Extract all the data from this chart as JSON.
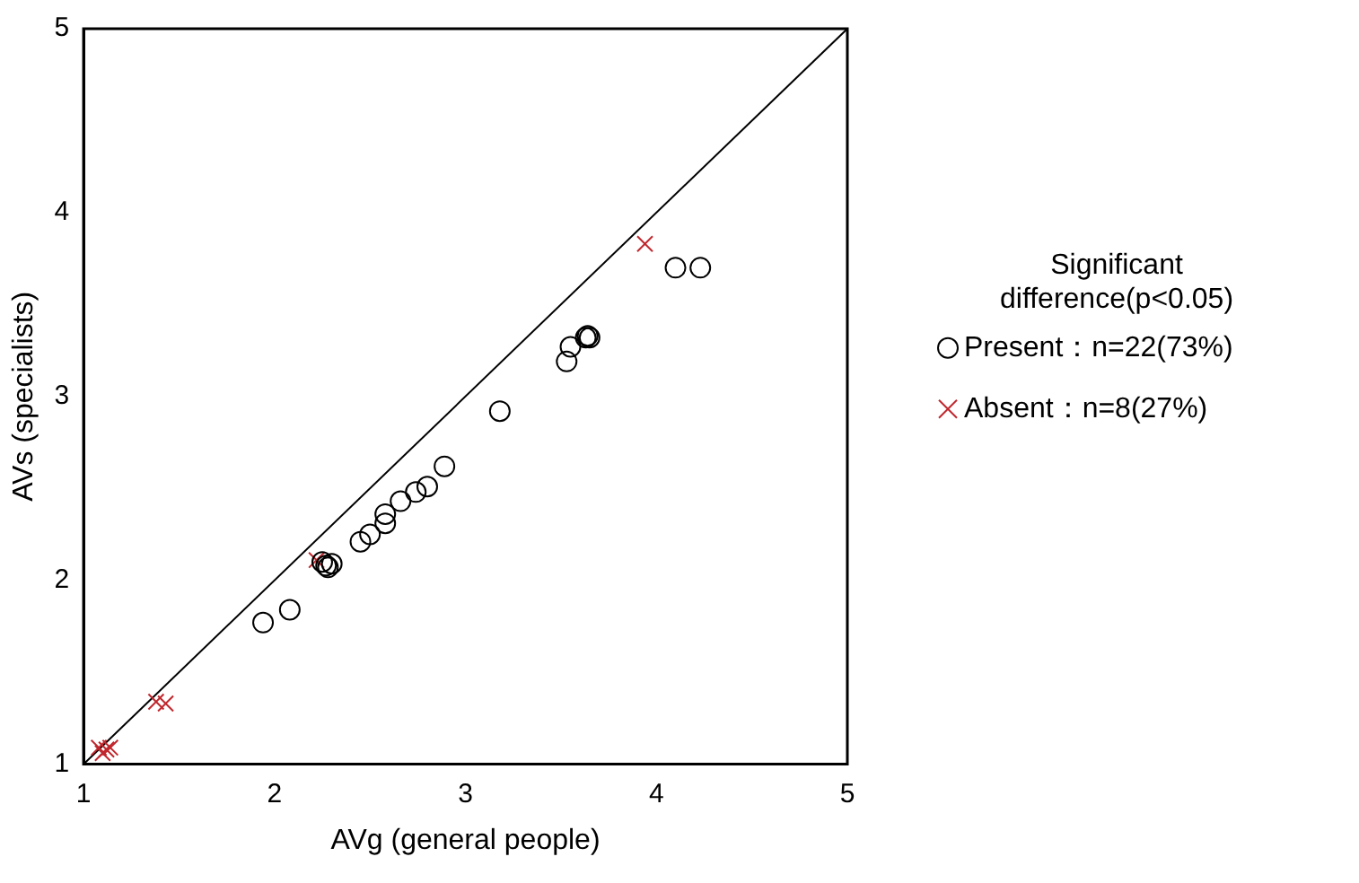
{
  "chart_data": {
    "type": "scatter",
    "xlabel": "AVg (general people)",
    "ylabel": "AVs (specialists)",
    "legend_title": "Significant difference(p<0.05)",
    "xlim": [
      1,
      5
    ],
    "ylim": [
      1,
      5
    ],
    "xticks": [
      1,
      2,
      3,
      4,
      5
    ],
    "yticks": [
      1,
      2,
      3,
      4,
      5
    ],
    "grid": false,
    "legend": "right",
    "series": [
      {
        "name": "Present：n=22(73%)",
        "color": "#000000",
        "marker": "circle",
        "x": [
          1.94,
          2.08,
          2.25,
          2.27,
          2.28,
          2.3,
          2.45,
          2.5,
          2.58,
          2.58,
          2.66,
          2.74,
          2.8,
          2.89,
          3.18,
          3.53,
          3.55,
          3.63,
          3.64,
          3.65,
          4.1,
          4.23
        ],
        "values": [
          1.77,
          1.84,
          2.1,
          2.08,
          2.07,
          2.09,
          2.21,
          2.25,
          2.36,
          2.31,
          2.43,
          2.48,
          2.51,
          2.62,
          2.92,
          3.19,
          3.27,
          3.32,
          3.33,
          3.32,
          3.7,
          3.7
        ]
      },
      {
        "name": "Absent：n=8(27%)",
        "color": "#c0272d",
        "marker": "cross",
        "x": [
          1.08,
          1.1,
          1.12,
          1.14,
          1.38,
          1.43,
          2.22,
          3.94
        ],
        "values": [
          1.09,
          1.06,
          1.08,
          1.09,
          1.34,
          1.33,
          2.11,
          3.83
        ]
      },
      {
        "type": "line",
        "color": "#000000",
        "marker": "none",
        "x": [
          1,
          5
        ],
        "values": [
          1,
          5
        ]
      }
    ]
  }
}
